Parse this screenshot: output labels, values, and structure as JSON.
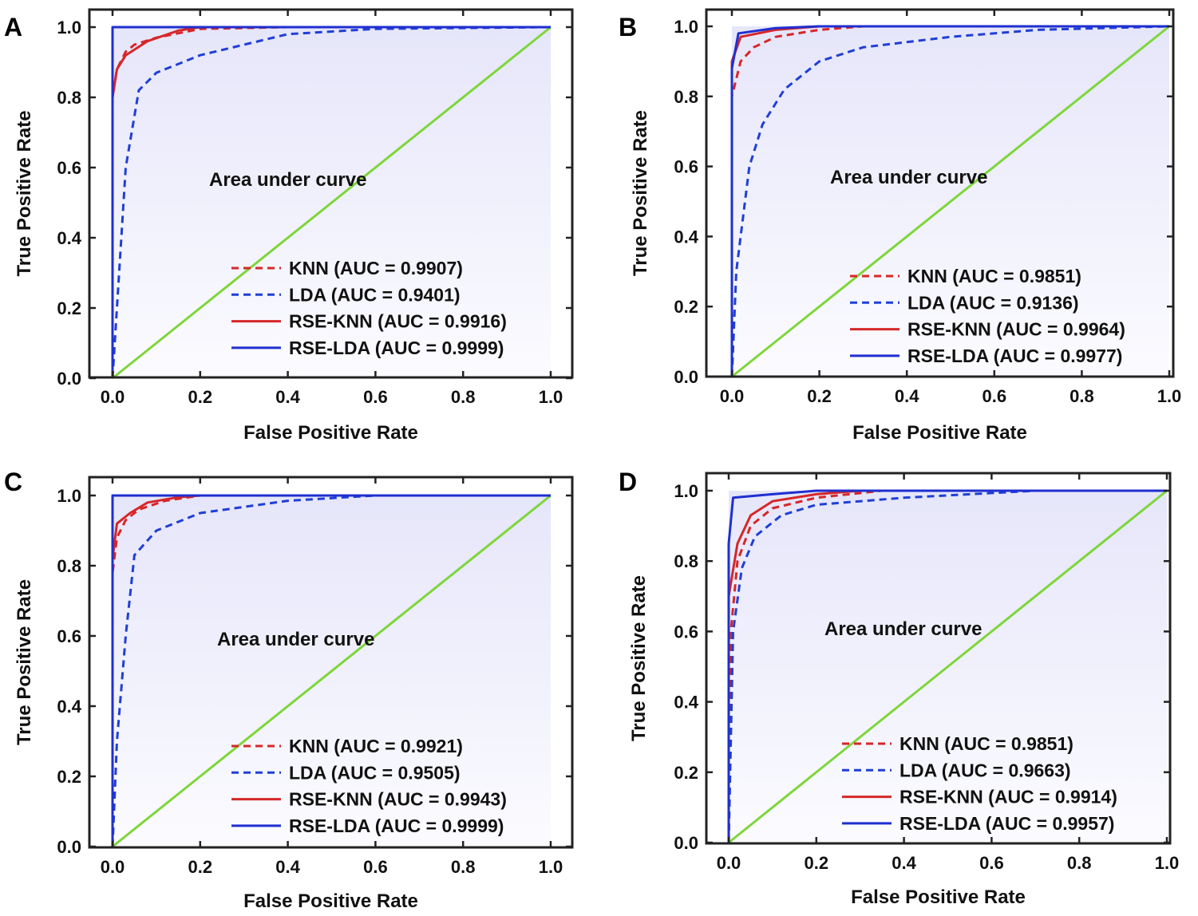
{
  "chart_data": [
    {
      "type": "line",
      "panel": "A",
      "xlabel": "False Positive Rate",
      "ylabel": "True Positive Rate",
      "annotation": "Area under curve",
      "xlim": [
        0,
        1
      ],
      "ylim": [
        0,
        1
      ],
      "xticks": [
        "0.0",
        "0.2",
        "0.4",
        "0.6",
        "0.8",
        "1.0"
      ],
      "yticks": [
        "0.0",
        "0.2",
        "0.4",
        "0.6",
        "0.8",
        "1.0"
      ],
      "series": [
        {
          "name": "KNN (AUC = 0.9907)",
          "style": "dashed",
          "color": "#d62728",
          "points": [
            [
              0,
              0
            ],
            [
              0,
              0.8
            ],
            [
              0.01,
              0.88
            ],
            [
              0.03,
              0.93
            ],
            [
              0.05,
              0.95
            ],
            [
              0.1,
              0.97
            ],
            [
              0.2,
              0.995
            ],
            [
              0.4,
              1
            ],
            [
              1,
              1
            ]
          ]
        },
        {
          "name": "LDA (AUC = 0.9401)",
          "style": "dashed",
          "color": "#1f3fd6",
          "points": [
            [
              0,
              0
            ],
            [
              0.01,
              0.2
            ],
            [
              0.03,
              0.6
            ],
            [
              0.06,
              0.82
            ],
            [
              0.1,
              0.87
            ],
            [
              0.2,
              0.92
            ],
            [
              0.3,
              0.95
            ],
            [
              0.4,
              0.98
            ],
            [
              0.6,
              0.995
            ],
            [
              1,
              1
            ]
          ]
        },
        {
          "name": "RSE-KNN (AUC = 0.9916)",
          "style": "solid",
          "color": "#d62728",
          "points": [
            [
              0,
              0
            ],
            [
              0,
              0.8
            ],
            [
              0.01,
              0.88
            ],
            [
              0.03,
              0.92
            ],
            [
              0.08,
              0.96
            ],
            [
              0.15,
              0.99
            ],
            [
              0.2,
              1
            ],
            [
              1,
              1
            ]
          ]
        },
        {
          "name": "RSE-LDA (AUC = 0.9999)",
          "style": "solid",
          "color": "#1f2fd0",
          "points": [
            [
              0,
              0
            ],
            [
              0,
              1
            ],
            [
              1,
              1
            ]
          ]
        }
      ]
    },
    {
      "type": "line",
      "panel": "B",
      "xlabel": "False Positive Rate",
      "ylabel": "True Positive Rate",
      "annotation": "Area under curve",
      "xlim": [
        0,
        1
      ],
      "ylim": [
        0,
        1
      ],
      "xticks": [
        "0.0",
        "0.2",
        "0.4",
        "0.6",
        "0.8",
        "1.0"
      ],
      "yticks": [
        "0.0",
        "0.2",
        "0.4",
        "0.6",
        "0.8",
        "1.0"
      ],
      "series": [
        {
          "name": "KNN (AUC = 0.9851)",
          "style": "dashed",
          "color": "#d62728",
          "points": [
            [
              0,
              0
            ],
            [
              0,
              0.8
            ],
            [
              0.02,
              0.9
            ],
            [
              0.05,
              0.94
            ],
            [
              0.1,
              0.97
            ],
            [
              0.2,
              0.99
            ],
            [
              0.3,
              1
            ],
            [
              1,
              1
            ]
          ]
        },
        {
          "name": "LDA (AUC = 0.9136)",
          "style": "dashed",
          "color": "#1f3fd6",
          "points": [
            [
              0,
              0
            ],
            [
              0.01,
              0.3
            ],
            [
              0.04,
              0.6
            ],
            [
              0.07,
              0.72
            ],
            [
              0.12,
              0.82
            ],
            [
              0.2,
              0.9
            ],
            [
              0.3,
              0.94
            ],
            [
              0.5,
              0.97
            ],
            [
              0.7,
              0.99
            ],
            [
              1,
              1
            ]
          ]
        },
        {
          "name": "RSE-KNN (AUC = 0.9964)",
          "style": "solid",
          "color": "#d62728",
          "points": [
            [
              0,
              0
            ],
            [
              0,
              0.9
            ],
            [
              0.02,
              0.97
            ],
            [
              0.1,
              0.99
            ],
            [
              0.2,
              1
            ],
            [
              1,
              1
            ]
          ]
        },
        {
          "name": "RSE-LDA (AUC = 0.9977)",
          "style": "solid",
          "color": "#1f2fd0",
          "points": [
            [
              0,
              0
            ],
            [
              0,
              0.88
            ],
            [
              0.015,
              0.98
            ],
            [
              0.1,
              0.995
            ],
            [
              0.2,
              1
            ],
            [
              1,
              1
            ]
          ]
        }
      ]
    },
    {
      "type": "line",
      "panel": "C",
      "xlabel": "False Positive Rate",
      "ylabel": "True Positive Rate",
      "annotation": "Area under curve",
      "xlim": [
        0,
        1
      ],
      "ylim": [
        0,
        1
      ],
      "xticks": [
        "0.0",
        "0.2",
        "0.4",
        "0.6",
        "0.8",
        "1.0"
      ],
      "yticks": [
        "0.0",
        "0.2",
        "0.4",
        "0.6",
        "0.8",
        "1.0"
      ],
      "series": [
        {
          "name": "KNN (AUC = 0.9921)",
          "style": "dashed",
          "color": "#d62728",
          "points": [
            [
              0,
              0
            ],
            [
              0,
              0.78
            ],
            [
              0.01,
              0.88
            ],
            [
              0.03,
              0.93
            ],
            [
              0.06,
              0.96
            ],
            [
              0.12,
              0.985
            ],
            [
              0.2,
              1
            ],
            [
              1,
              1
            ]
          ]
        },
        {
          "name": "LDA (AUC = 0.9505)",
          "style": "dashed",
          "color": "#1f3fd6",
          "points": [
            [
              0,
              0
            ],
            [
              0.01,
              0.3
            ],
            [
              0.03,
              0.6
            ],
            [
              0.05,
              0.83
            ],
            [
              0.1,
              0.9
            ],
            [
              0.2,
              0.95
            ],
            [
              0.4,
              0.985
            ],
            [
              0.6,
              1
            ],
            [
              1,
              1
            ]
          ]
        },
        {
          "name": "RSE-KNN (AUC = 0.9943)",
          "style": "solid",
          "color": "#d62728",
          "points": [
            [
              0,
              0
            ],
            [
              0,
              0.82
            ],
            [
              0.01,
              0.92
            ],
            [
              0.04,
              0.95
            ],
            [
              0.08,
              0.98
            ],
            [
              0.15,
              0.995
            ],
            [
              0.2,
              1
            ],
            [
              1,
              1
            ]
          ]
        },
        {
          "name": "RSE-LDA (AUC = 0.9999)",
          "style": "solid",
          "color": "#1f2fd0",
          "points": [
            [
              0,
              0
            ],
            [
              0,
              1
            ],
            [
              1,
              1
            ]
          ]
        }
      ]
    },
    {
      "type": "line",
      "panel": "D",
      "xlabel": "False Positive Rate",
      "ylabel": "True Positive Rate",
      "annotation": "Area under curve",
      "xlim": [
        0,
        1
      ],
      "ylim": [
        0,
        1
      ],
      "xticks": [
        "0.0",
        "0.2",
        "0.4",
        "0.6",
        "0.8",
        "1.0"
      ],
      "yticks": [
        "0.0",
        "0.2",
        "0.4",
        "0.6",
        "0.8",
        "1.0"
      ],
      "series": [
        {
          "name": "KNN (AUC = 0.9851)",
          "style": "dashed",
          "color": "#d62728",
          "points": [
            [
              0,
              0
            ],
            [
              0.005,
              0.6
            ],
            [
              0.02,
              0.8
            ],
            [
              0.05,
              0.9
            ],
            [
              0.1,
              0.95
            ],
            [
              0.2,
              0.98
            ],
            [
              0.35,
              1
            ],
            [
              1,
              1
            ]
          ]
        },
        {
          "name": "LDA (AUC = 0.9663)",
          "style": "dashed",
          "color": "#1f3fd6",
          "points": [
            [
              0,
              0
            ],
            [
              0.01,
              0.6
            ],
            [
              0.03,
              0.78
            ],
            [
              0.06,
              0.87
            ],
            [
              0.12,
              0.93
            ],
            [
              0.2,
              0.96
            ],
            [
              0.4,
              0.98
            ],
            [
              0.7,
              1
            ],
            [
              1,
              1
            ]
          ]
        },
        {
          "name": "RSE-KNN (AUC = 0.9914)",
          "style": "solid",
          "color": "#d62728",
          "points": [
            [
              0,
              0
            ],
            [
              0,
              0.7
            ],
            [
              0.02,
              0.85
            ],
            [
              0.05,
              0.93
            ],
            [
              0.1,
              0.97
            ],
            [
              0.2,
              0.99
            ],
            [
              0.3,
              1
            ],
            [
              1,
              1
            ]
          ]
        },
        {
          "name": "RSE-LDA (AUC = 0.9957)",
          "style": "solid",
          "color": "#1f2fd0",
          "points": [
            [
              0,
              0
            ],
            [
              0,
              0.85
            ],
            [
              0.01,
              0.98
            ],
            [
              0.1,
              0.99
            ],
            [
              0.2,
              1
            ],
            [
              1,
              1
            ]
          ]
        }
      ]
    }
  ],
  "diagonal_color": "#7ed63a"
}
